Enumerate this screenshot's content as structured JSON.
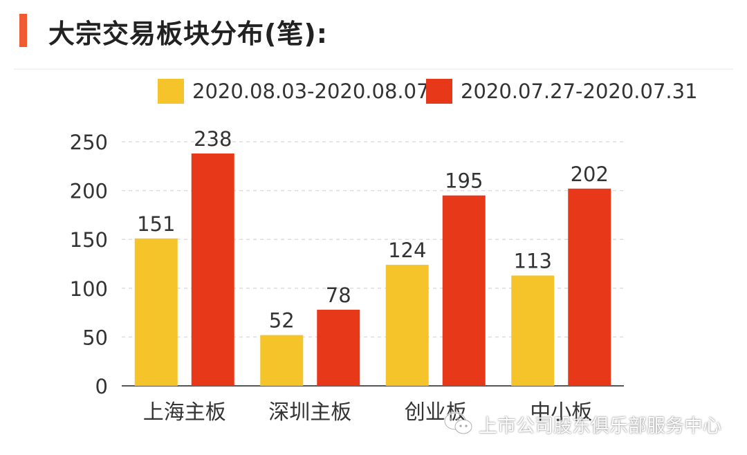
{
  "title": "大宗交易板块分布(笔):",
  "colors": {
    "accent": "#f05a32",
    "series1": "#f5c32a",
    "series2": "#e8381a",
    "axis": "#555555",
    "grid": "#dddddd",
    "text": "#333333"
  },
  "chart_data": {
    "type": "bar",
    "title": "大宗交易板块分布(笔):",
    "categories": [
      "上海主板",
      "深圳主板",
      "创业板",
      "中小板"
    ],
    "series": [
      {
        "name": "2020.08.03-2020.08.07",
        "values": [
          151,
          52,
          124,
          113
        ]
      },
      {
        "name": "2020.07.27-2020.07.31",
        "values": [
          238,
          78,
          195,
          202
        ]
      }
    ],
    "yticks": [
      0,
      50,
      100,
      150,
      200,
      250
    ],
    "ylim": [
      0,
      250
    ],
    "xlabel": "",
    "ylabel": "",
    "grid": true,
    "legend_position": "top"
  },
  "legend": {
    "items": [
      {
        "label": "2020.08.03-2020.08.07",
        "color": "#f5c32a"
      },
      {
        "label": "2020.07.27-2020.07.31",
        "color": "#e8381a"
      }
    ]
  },
  "watermark": {
    "text": "上市公司股东俱乐部服务中心",
    "icon": "wechat-icon"
  }
}
